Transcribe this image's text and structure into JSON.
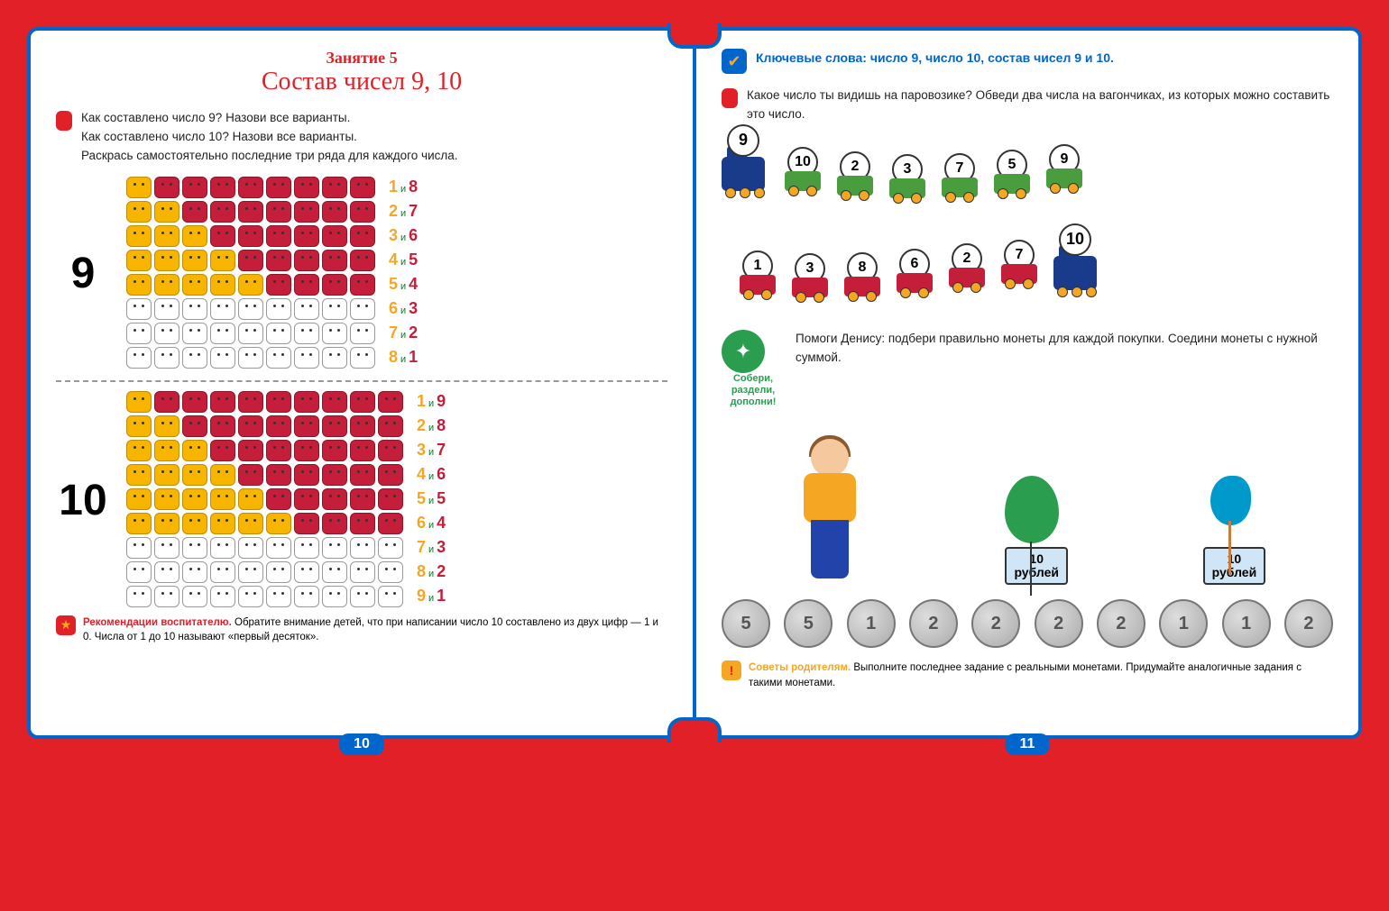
{
  "colors": {
    "background": "#e22028",
    "border": "#0066cc",
    "accent_red": "#c41e3a",
    "accent_yellow": "#f7b500",
    "accent_orange": "#f5a623",
    "accent_green_dark": "#0a7d2c",
    "accent_green": "#2a9d4f",
    "accent_blue": "#0066cc"
  },
  "left": {
    "lesson_number": "Занятие 5",
    "title": "Состав чисел 9, 10",
    "task": {
      "line1": "Как составлено число 9? Назови все варианты.",
      "line2": "Как составлено число 10? Назови все варианты.",
      "line3": "Раскрась самостоятельно последние три ряда для каждого числа."
    },
    "blocks": [
      {
        "big": "9",
        "total": 9,
        "rows": [
          {
            "yellow": 1,
            "red": 8,
            "filled": true,
            "a": "1",
            "b": "8"
          },
          {
            "yellow": 2,
            "red": 7,
            "filled": true,
            "a": "2",
            "b": "7"
          },
          {
            "yellow": 3,
            "red": 6,
            "filled": true,
            "a": "3",
            "b": "6"
          },
          {
            "yellow": 4,
            "red": 5,
            "filled": true,
            "a": "4",
            "b": "5"
          },
          {
            "yellow": 5,
            "red": 4,
            "filled": true,
            "a": "5",
            "b": "4"
          },
          {
            "yellow": 0,
            "red": 0,
            "filled": false,
            "a": "6",
            "b": "3"
          },
          {
            "yellow": 0,
            "red": 0,
            "filled": false,
            "a": "7",
            "b": "2"
          },
          {
            "yellow": 0,
            "red": 0,
            "filled": false,
            "a": "8",
            "b": "1"
          }
        ]
      },
      {
        "big": "10",
        "total": 10,
        "rows": [
          {
            "yellow": 1,
            "red": 9,
            "filled": true,
            "a": "1",
            "b": "9"
          },
          {
            "yellow": 2,
            "red": 8,
            "filled": true,
            "a": "2",
            "b": "8"
          },
          {
            "yellow": 3,
            "red": 7,
            "filled": true,
            "a": "3",
            "b": "7"
          },
          {
            "yellow": 4,
            "red": 6,
            "filled": true,
            "a": "4",
            "b": "6"
          },
          {
            "yellow": 5,
            "red": 5,
            "filled": true,
            "a": "5",
            "b": "5"
          },
          {
            "yellow": 6,
            "red": 4,
            "filled": true,
            "a": "6",
            "b": "4"
          },
          {
            "yellow": 0,
            "red": 0,
            "filled": false,
            "a": "7",
            "b": "3"
          },
          {
            "yellow": 0,
            "red": 0,
            "filled": false,
            "a": "8",
            "b": "2"
          },
          {
            "yellow": 0,
            "red": 0,
            "filled": false,
            "a": "9",
            "b": "1"
          }
        ]
      }
    ],
    "and_word": "и",
    "advice": {
      "title": "Рекомендации воспитателю.",
      "text": "Обратите внимание детей, что при написании число 10 составлено из двух цифр — 1 и 0. Числа от 1 до 10 называют «первый десяток»."
    },
    "page_number": "10"
  },
  "right": {
    "keywords_label": "Ключевые слова:",
    "keywords_text": "число 9, число 10, состав чисел 9 и 10.",
    "task1": "Какое число ты видишь на паровозике? Обведи два числа на вагончиках, из которых можно составить это число.",
    "trains": [
      {
        "locomotive": "9",
        "loco_side": "left",
        "wagons": [
          "10",
          "2",
          "3",
          "7",
          "5",
          "9"
        ]
      },
      {
        "locomotive": "10",
        "loco_side": "right",
        "wagons": [
          "1",
          "3",
          "8",
          "6",
          "2",
          "7"
        ]
      }
    ],
    "puzzle_label": "Собери, раздели, дополни!",
    "task2": "Помоги Денису: подбери правильно монеты для каждой покупки. Соедини монеты с нужной суммой.",
    "items": [
      {
        "name": "balloon",
        "price": "10",
        "currency": "рублей"
      },
      {
        "name": "rooster-lollipop",
        "price": "10",
        "currency": "рублей"
      }
    ],
    "coins": [
      "5",
      "5",
      "1",
      "2",
      "2",
      "2",
      "2",
      "1",
      "1",
      "2"
    ],
    "advice": {
      "title": "Советы родителям.",
      "text": "Выполните последнее задание с реальными монетами. Придумайте аналогичные задания с такими монетами."
    },
    "page_number": "11"
  }
}
